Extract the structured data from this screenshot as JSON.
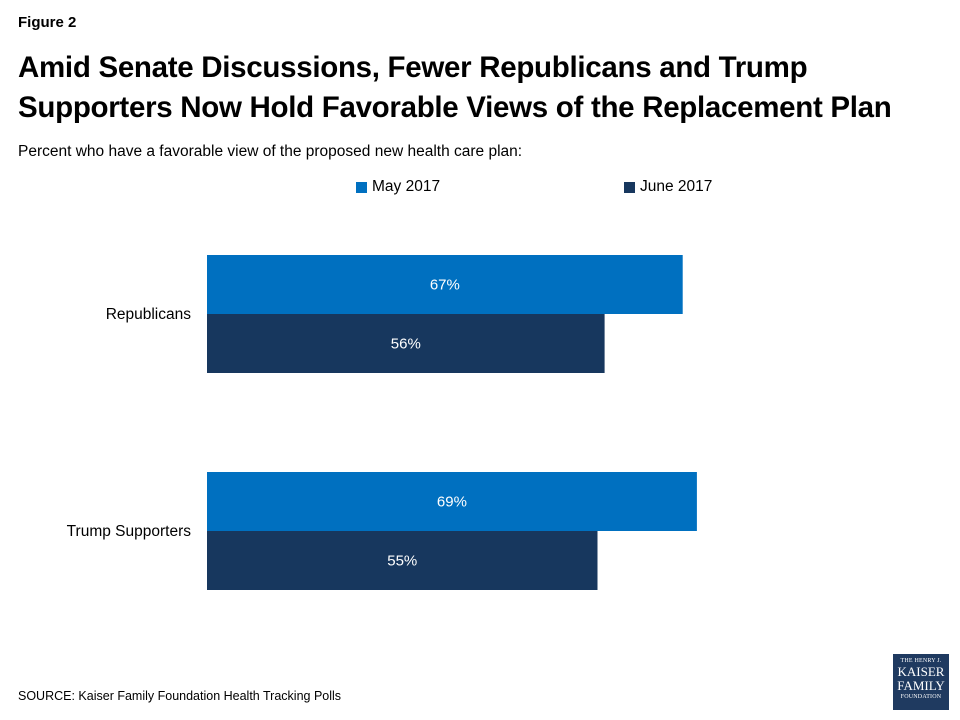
{
  "figure_label": "Figure 2",
  "title": "Amid Senate Discussions, Fewer Republicans and Trump Supporters Now Hold Favorable Views of the Replacement Plan",
  "subtitle": "Percent who have a favorable view of the proposed new health care plan:",
  "source": "SOURCE: Kaiser Family Foundation Health Tracking Polls",
  "logo": {
    "line1": "THE HENRY J.",
    "line2": "KAISER",
    "line3": "FAMILY",
    "line4": "FOUNDATION"
  },
  "colors": {
    "may": "#0070c0",
    "june": "#17375e"
  },
  "chart_data": {
    "type": "bar",
    "orientation": "horizontal",
    "categories": [
      "Republicans",
      "Trump Supporters"
    ],
    "series": [
      {
        "name": "May 2017",
        "values": [
          67,
          69
        ],
        "labels": [
          "67%",
          "69%"
        ],
        "color": "#0070c0"
      },
      {
        "name": "June 2017",
        "values": [
          56,
          55
        ],
        "labels": [
          "56%",
          "55%"
        ],
        "color": "#17375e"
      }
    ],
    "xlim": [
      0,
      100
    ],
    "grid": false,
    "legend": "top"
  }
}
